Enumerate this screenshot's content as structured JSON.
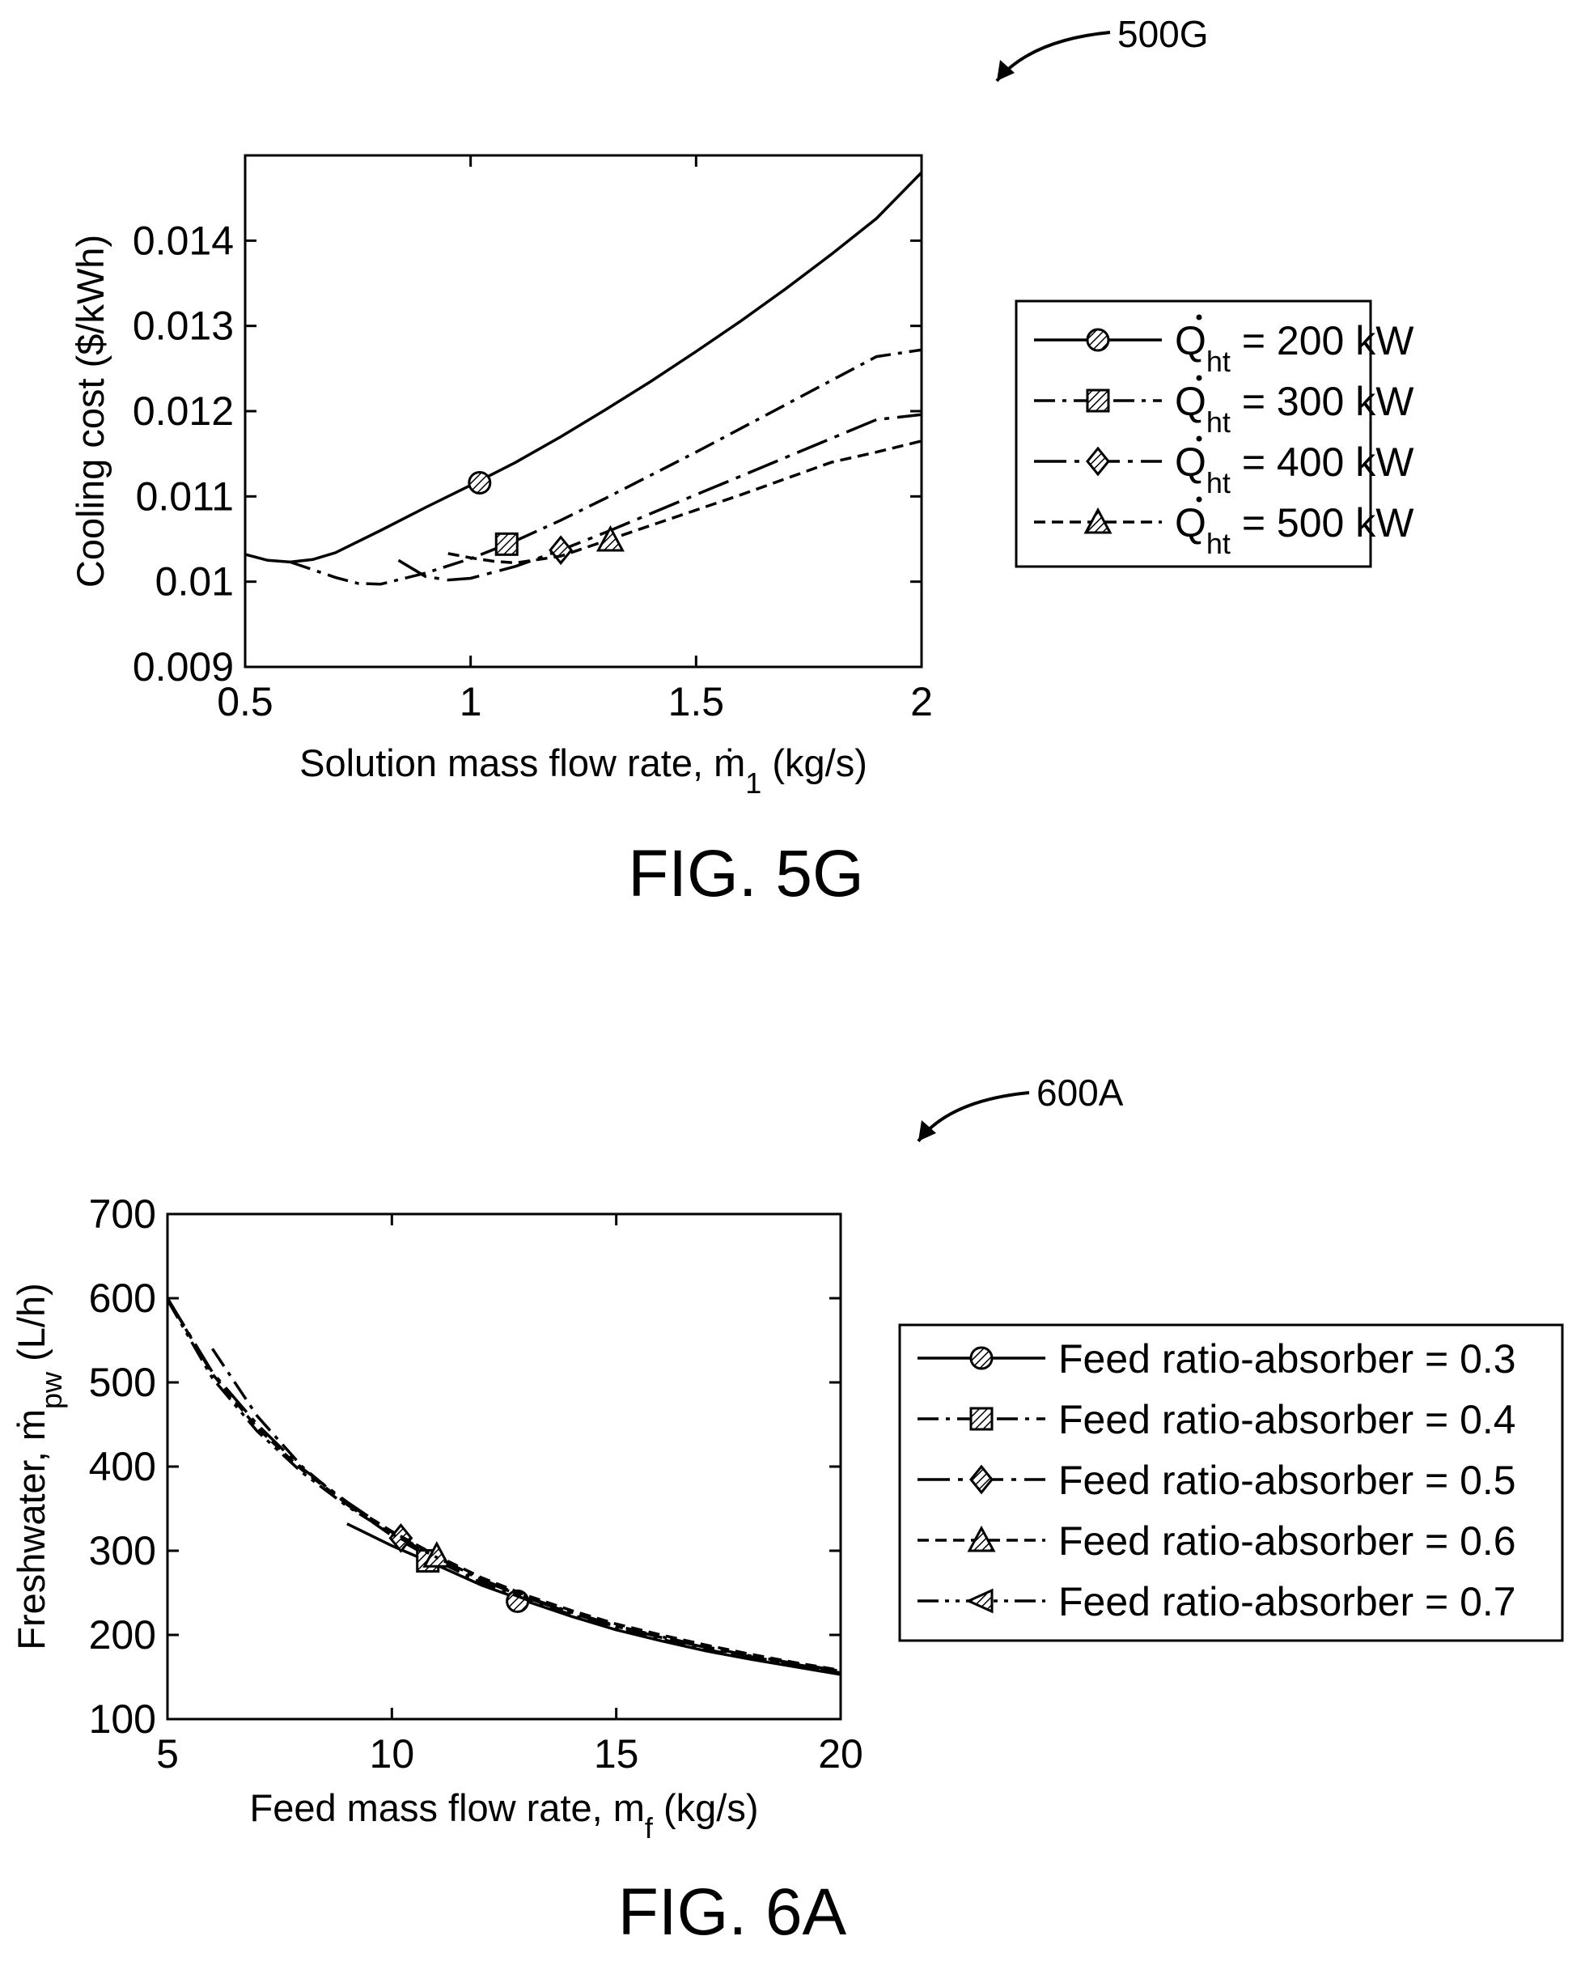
{
  "chart_data": [
    {
      "type": "line",
      "ref": "500G",
      "caption": "FIG. 5G",
      "xlabel": {
        "main": "Solution mass flow rate, ṁ",
        "sub": "1",
        "unit": " (kg/s)"
      },
      "ylabel": "Cooling cost ($/kWh)",
      "xlim": [
        0.5,
        2
      ],
      "ylim": [
        0.009,
        0.015
      ],
      "xticks": [
        0.5,
        1,
        1.5,
        2
      ],
      "xtick_labels": [
        "0.5",
        "1",
        "1.5",
        "2"
      ],
      "yticks": [
        0.009,
        0.01,
        0.011,
        0.012,
        0.013,
        0.014
      ],
      "ytick_labels": [
        "0.009",
        "0.01",
        "0.011",
        "0.012",
        "0.013",
        "0.014"
      ],
      "legend_placement": "right-outside",
      "series": [
        {
          "legend": "Q",
          "legend_sub": "ht",
          "legend_rest": " = 200 kW",
          "dash": "solid",
          "marker": "circle",
          "x": [
            0.5,
            0.55,
            0.6,
            0.65,
            0.7,
            0.8,
            0.9,
            1.0,
            1.1,
            1.2,
            1.3,
            1.4,
            1.5,
            1.6,
            1.7,
            1.8,
            1.9,
            2.0
          ],
          "y": [
            0.01032,
            0.01025,
            0.01023,
            0.01026,
            0.01034,
            0.0106,
            0.01087,
            0.01113,
            0.0114,
            0.0117,
            0.01202,
            0.01235,
            0.0127,
            0.01306,
            0.01344,
            0.01384,
            0.01426,
            0.0148
          ],
          "marker_x": 1.02,
          "marker_y": 0.01116
        },
        {
          "legend": "Q",
          "legend_sub": "ht",
          "legend_rest": " = 300 kW",
          "dash": "dashdot",
          "marker": "square",
          "x": [
            0.6,
            0.7,
            0.75,
            0.8,
            0.9,
            1.0,
            1.1,
            1.2,
            1.3,
            1.4,
            1.5,
            1.6,
            1.7,
            1.8,
            1.9,
            2.0
          ],
          "y": [
            0.01023,
            0.01005,
            0.00998,
            0.00997,
            0.0101,
            0.01027,
            0.01048,
            0.01072,
            0.01098,
            0.01125,
            0.01152,
            0.0118,
            0.01208,
            0.01236,
            0.01264,
            0.01272
          ],
          "marker_x": 1.08,
          "marker_y": 0.01044
        },
        {
          "legend": "Q",
          "legend_sub": "ht",
          "legend_rest": " = 400 kW",
          "dash": "dashdotlong",
          "marker": "diamond",
          "x": [
            0.84,
            0.9,
            0.95,
            1.0,
            1.1,
            1.2,
            1.3,
            1.4,
            1.5,
            1.6,
            1.7,
            1.8,
            1.9,
            2.0
          ],
          "y": [
            0.01025,
            0.01006,
            0.01002,
            0.01004,
            0.01018,
            0.01037,
            0.01058,
            0.0108,
            0.01102,
            0.01124,
            0.01146,
            0.01168,
            0.0119,
            0.01196
          ],
          "marker_x": 1.2,
          "marker_y": 0.01037
        },
        {
          "legend": "Q",
          "legend_sub": "ht",
          "legend_rest": " = 500 kW",
          "dash": "dashed",
          "marker": "triangle",
          "x": [
            0.95,
            1.0,
            1.05,
            1.1,
            1.2,
            1.3,
            1.4,
            1.5,
            1.6,
            1.7,
            1.8,
            1.9,
            2.0
          ],
          "y": [
            0.01033,
            0.01028,
            0.01024,
            0.01022,
            0.0103,
            0.01048,
            0.01066,
            0.01084,
            0.01102,
            0.01121,
            0.0114,
            0.01152,
            0.01165
          ],
          "marker_x": 1.31,
          "marker_y": 0.01049
        }
      ]
    },
    {
      "type": "line",
      "ref": "600A",
      "caption": "FIG. 6A",
      "xlabel": {
        "main": "Feed mass flow rate, m",
        "sub": "f",
        "unit": " (kg/s)"
      },
      "ylabel": {
        "main": "Freshwater, ṁ",
        "sub": "pw",
        "unit": " (L/h)"
      },
      "xlim": [
        5,
        20
      ],
      "ylim": [
        100,
        700
      ],
      "xticks": [
        5,
        10,
        15,
        20
      ],
      "xtick_labels": [
        "5",
        "10",
        "15",
        "20"
      ],
      "yticks": [
        100,
        200,
        300,
        400,
        500,
        600,
        700
      ],
      "ytick_labels": [
        "100",
        "200",
        "300",
        "400",
        "500",
        "600",
        "700"
      ],
      "legend_placement": "right-outside",
      "series": [
        {
          "legend": "Feed ratio-absorber = 0.3",
          "dash": "solid",
          "marker": "circle",
          "x": [
            9,
            10,
            11,
            12,
            13,
            14,
            15,
            16,
            17,
            18,
            19,
            20
          ],
          "y": [
            332,
            306,
            283,
            259,
            240,
            222,
            206,
            193,
            181,
            171,
            162,
            153
          ],
          "marker_x": 12.8,
          "marker_y": 240
        },
        {
          "legend": "Feed ratio-absorber = 0.4",
          "dash": "dashdot",
          "marker": "square",
          "x": [
            6,
            7,
            8,
            9,
            10,
            11,
            12,
            13,
            14,
            15,
            16,
            17,
            18,
            19,
            20
          ],
          "y": [
            540,
            460,
            400,
            355,
            318,
            288,
            262,
            242,
            224,
            208,
            195,
            183,
            172,
            163,
            155
          ],
          "marker_x": 10.8,
          "marker_y": 288
        },
        {
          "legend": "Feed ratio-absorber = 0.5",
          "dash": "dashdotlong",
          "marker": "diamond",
          "x": [
            5,
            6,
            7,
            8,
            9,
            10,
            11,
            12,
            13,
            14,
            15,
            16,
            17,
            18,
            19,
            20
          ],
          "y": [
            600,
            512,
            450,
            398,
            358,
            322,
            292,
            265,
            244,
            226,
            210,
            197,
            185,
            174,
            165,
            156
          ],
          "marker_x": 10.2,
          "marker_y": 315
        },
        {
          "legend": "Feed ratio-absorber = 0.6",
          "dash": "dashed",
          "marker": "triangle",
          "x": [
            5,
            6,
            7,
            8,
            9,
            10,
            11,
            12,
            13,
            14,
            15,
            16,
            17,
            18,
            19,
            20
          ],
          "y": [
            600,
            510,
            446,
            396,
            356,
            323,
            294,
            268,
            247,
            229,
            213,
            200,
            188,
            177,
            167,
            158
          ],
          "marker_x": 11.0,
          "marker_y": 294
        },
        {
          "legend": "Feed ratio-absorber = 0.7",
          "dash": "dashdotdot",
          "marker": "triangle-left",
          "x": [
            5,
            6,
            7,
            8,
            9,
            10,
            11,
            12,
            13,
            14,
            15,
            16,
            17,
            18,
            19,
            20
          ],
          "y": [
            598,
            505,
            442,
            393,
            353,
            320,
            292,
            266,
            245,
            227,
            211,
            198,
            186,
            175,
            166,
            157
          ],
          "marker_x": null,
          "marker_y": null
        }
      ]
    }
  ]
}
